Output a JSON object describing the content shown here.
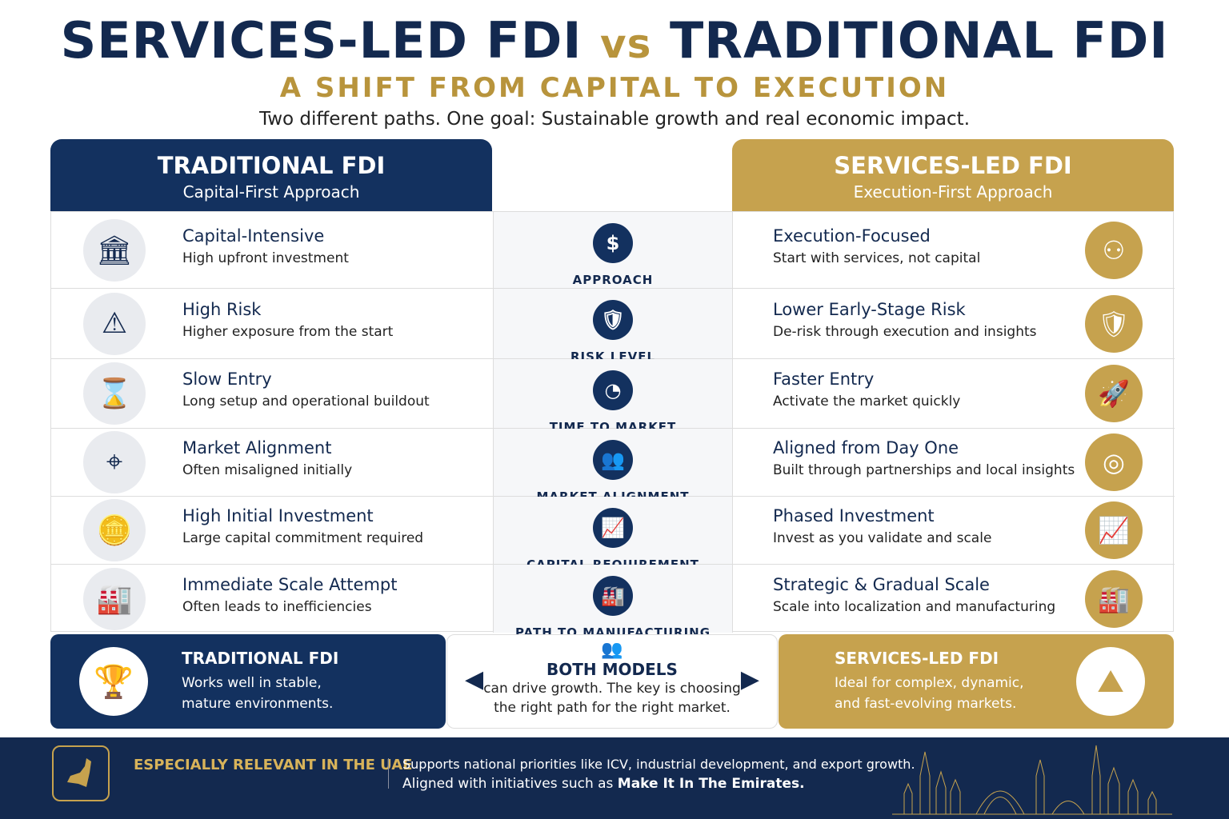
{
  "header": {
    "title_left": "SERVICES-LED FDI",
    "title_vs": "vs",
    "title_right": "TRADITIONAL FDI",
    "subtitle": "A SHIFT FROM CAPITAL TO EXECUTION",
    "tagline": "Two different paths. One goal: Sustainable growth and real economic impact."
  },
  "left_panel": {
    "title": "TRADITIONAL FDI",
    "subtitle": "Capital-First Approach"
  },
  "right_panel": {
    "title": "SERVICES-LED FDI",
    "subtitle": "Execution-First Approach"
  },
  "rows": [
    {
      "category": "APPROACH",
      "center_icon": "dollar-icon",
      "left_icon": "bank-icon",
      "left_title": "Capital-Intensive",
      "left_desc": "High upfront investment",
      "right_icon": "people-network-icon",
      "right_title": "Execution-Focused",
      "right_desc": "Start with services, not capital"
    },
    {
      "category": "RISK LEVEL",
      "center_icon": "shield-check-icon",
      "left_icon": "warning-icon",
      "left_title": "High Risk",
      "left_desc": "Higher exposure from the start",
      "right_icon": "shield-check-icon",
      "right_title": "Lower Early-Stage Risk",
      "right_desc": "De-risk through execution and insights"
    },
    {
      "category": "TIME TO MARKET",
      "center_icon": "speedometer-icon",
      "left_icon": "hourglass-icon",
      "left_title": "Slow Entry",
      "left_desc": "Long setup and operational buildout",
      "right_icon": "rocket-icon",
      "right_title": "Faster Entry",
      "right_desc": "Activate the market quickly"
    },
    {
      "category": "MARKET ALIGNMENT",
      "center_icon": "group-icon",
      "left_icon": "crosshair-icon",
      "left_title": "Market Alignment",
      "left_desc": "Often misaligned initially",
      "right_icon": "target-icon",
      "right_title": "Aligned from Day One",
      "right_desc": "Built through partnerships and local insights"
    },
    {
      "category": "CAPITAL REQUIREMENT",
      "center_icon": "growth-chart-icon",
      "left_icon": "coins-icon",
      "left_title": "High Initial Investment",
      "left_desc": "Large capital commitment required",
      "right_icon": "growth-chart-icon",
      "right_title": "Phased Investment",
      "right_desc": "Invest as you validate and scale"
    },
    {
      "category": "PATH TO MANUFACTURING",
      "center_icon": "factory-icon",
      "left_icon": "factory-icon",
      "left_title": "Immediate Scale Attempt",
      "left_desc": "Often leads to inefficiencies",
      "right_icon": "factory-icon",
      "right_title": "Strategic & Gradual Scale",
      "right_desc": "Scale into localization and manufacturing"
    }
  ],
  "bottom": {
    "left": {
      "title": "TRADITIONAL FDI",
      "line1": "Works well in stable,",
      "line2": "mature environments."
    },
    "center": {
      "title": "BOTH MODELS",
      "line1": "can drive growth. The key is choosing",
      "line2": "the right path for the right market."
    },
    "right": {
      "title": "SERVICES-LED FDI",
      "line1": "Ideal for complex, dynamic,",
      "line2": "and fast-evolving markets."
    }
  },
  "footer": {
    "title": "ESPECIALLY RELEVANT IN THE UAE",
    "line1": "Supports national priorities like ICV, industrial development, and export growth.",
    "line2_prefix": "Aligned with initiatives such as ",
    "line2_emphasis": "Make It In The Emirates."
  },
  "colors": {
    "navy": "#13315f",
    "gold": "#c6a24e",
    "footer_bg": "#13294f"
  }
}
